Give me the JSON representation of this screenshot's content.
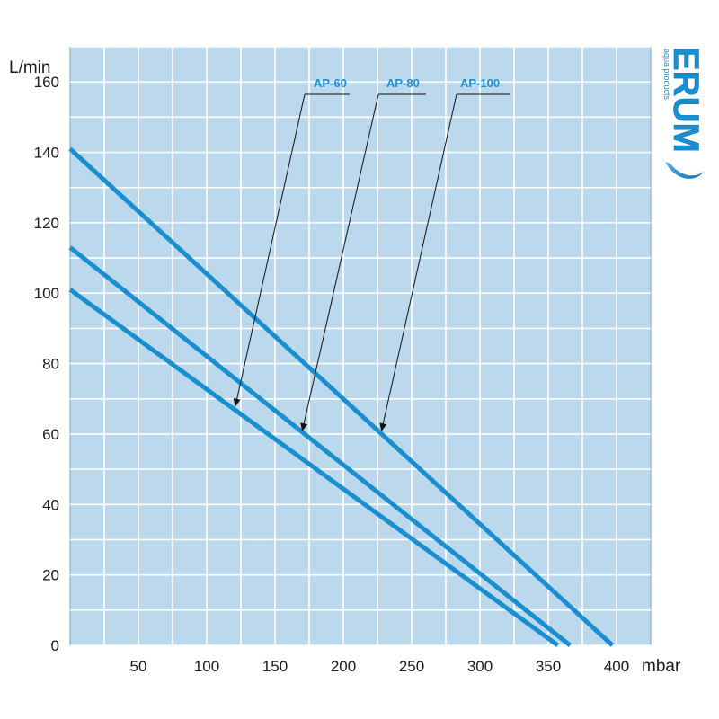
{
  "chart_data": {
    "type": "line",
    "title": "",
    "xlabel": "mbar",
    "ylabel": "L/min",
    "xlim": [
      0,
      425
    ],
    "ylim": [
      0,
      170
    ],
    "x_ticks": [
      "50",
      "100",
      "150",
      "200",
      "250",
      "300",
      "350",
      "400"
    ],
    "y_ticks": [
      "0",
      "20",
      "40",
      "60",
      "80",
      "100",
      "120",
      "140",
      "160"
    ],
    "grid": true,
    "background_color": "#bcd8ec",
    "grid_color": "#ffffff",
    "line_color": "#1a8fd0",
    "series": [
      {
        "name": "AP-60",
        "x": [
          0,
          357
        ],
        "y": [
          101,
          0
        ],
        "arrow_target": [
          121,
          68
        ]
      },
      {
        "name": "AP-80",
        "x": [
          0,
          366
        ],
        "y": [
          113,
          0
        ],
        "arrow_target": [
          170,
          61
        ]
      },
      {
        "name": "AP-100",
        "x": [
          0,
          397
        ],
        "y": [
          141,
          0
        ],
        "arrow_target": [
          228,
          61
        ]
      }
    ]
  },
  "logo": {
    "brand": "ERUM",
    "tagline": "aqua products",
    "color": "#1a8fd0"
  }
}
